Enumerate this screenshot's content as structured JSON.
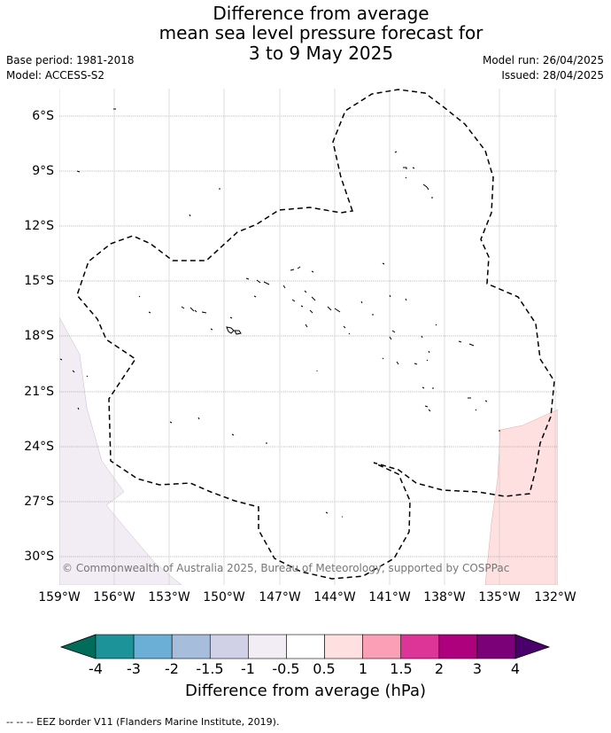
{
  "header": {
    "title_lines": [
      "Difference from average",
      "mean sea level pressure forecast for",
      "3 to 9 May 2025"
    ],
    "base_period": "Base period: 1981-2018",
    "model": "Model: ACCESS-S2",
    "model_run": "Model run: 26/04/2025",
    "issued": "Issued: 28/04/2025"
  },
  "map": {
    "lat_labels": [
      "6°S",
      "9°S",
      "12°S",
      "15°S",
      "18°S",
      "21°S",
      "24°S",
      "27°S",
      "30°S"
    ],
    "lon_labels": [
      "159°W",
      "156°W",
      "153°W",
      "150°W",
      "147°W",
      "144°W",
      "141°W",
      "138°W",
      "135°W",
      "132°W"
    ],
    "copyright": "© Commonwealth of Australia 2025, Bureau of Meteorology, supported by COSPPac",
    "anomaly_regions": [
      {
        "where": "south-west",
        "class": "-1 to -0.5 hPa",
        "color": "#f2edf4"
      },
      {
        "where": "south-east",
        "class": "0.5 to 1 hPa",
        "color": "#fde0df"
      }
    ],
    "colors": {
      "grid": "#9a9a9a",
      "eez": "#000000",
      "land": "#000000"
    }
  },
  "colorbar": {
    "levels": [
      "-4",
      "-3",
      "-2",
      "-1.5",
      "-1",
      "-0.5",
      "0.5",
      "1",
      "1.5",
      "2",
      "3",
      "4"
    ],
    "colors": [
      "#1c9399",
      "#6baed6",
      "#a6bddb",
      "#d0d1e6",
      "#f2edf4",
      "#ffffff",
      "#fde0df",
      "#fa9fb5",
      "#dd3497",
      "#ae017e",
      "#7a0177"
    ],
    "under_color": "#016c59",
    "over_color": "#49006a",
    "title": "Difference from average (hPa)"
  },
  "footer": {
    "eez_legend": "--  --  -- EEZ border V11 (Flanders Marine Institute, 2019)."
  }
}
